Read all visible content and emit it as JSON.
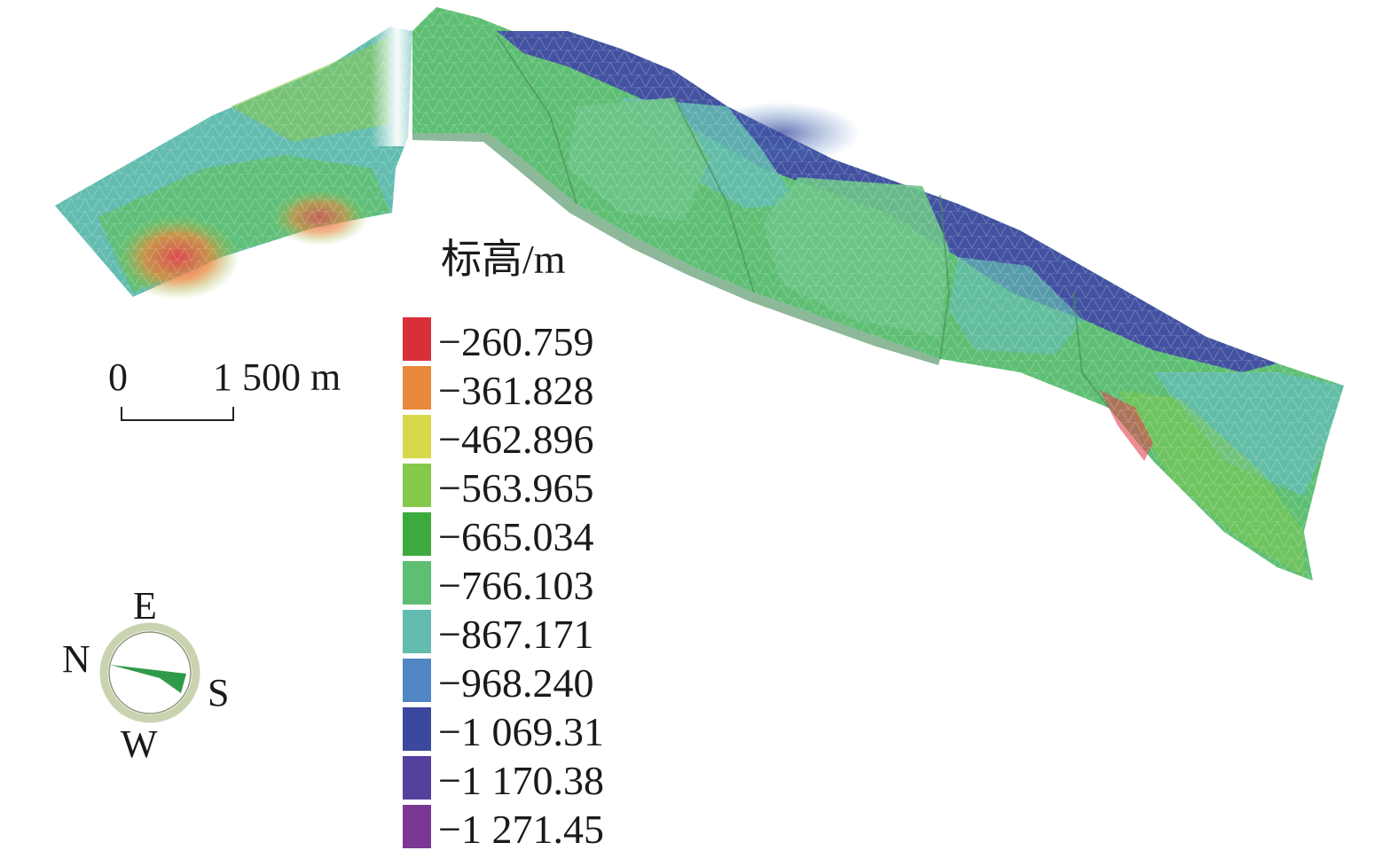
{
  "legend": {
    "title": "标高/m",
    "entries": [
      {
        "label": "−260.759",
        "color": "#d7303a"
      },
      {
        "label": "−361.828",
        "color": "#e8883b"
      },
      {
        "label": "−462.896",
        "color": "#d9d84a"
      },
      {
        "label": "−563.965",
        "color": "#86c94a"
      },
      {
        "label": "−665.034",
        "color": "#3daa3e"
      },
      {
        "label": "−766.103",
        "color": "#5ebf74"
      },
      {
        "label": "−867.171",
        "color": "#63bcb0"
      },
      {
        "label": "−968.240",
        "color": "#4f86c3"
      },
      {
        "label": "−1 069.31",
        "color": "#3a489d"
      },
      {
        "label": "−1 170.38",
        "color": "#55409d"
      },
      {
        "label": "−1 271.45",
        "color": "#7a3796"
      }
    ]
  },
  "scale_bar": {
    "start_label": "0",
    "end_label": "1 500 m"
  },
  "compass": {
    "east": "E",
    "north": "N",
    "south": "S",
    "west": "W",
    "ring_color": "#c9d3b0",
    "arrow_color": "#2f9a4a"
  },
  "model": {
    "dominant_color": "#6cc487",
    "high_color": "#3f46a6",
    "low_color": "#d9423e"
  }
}
